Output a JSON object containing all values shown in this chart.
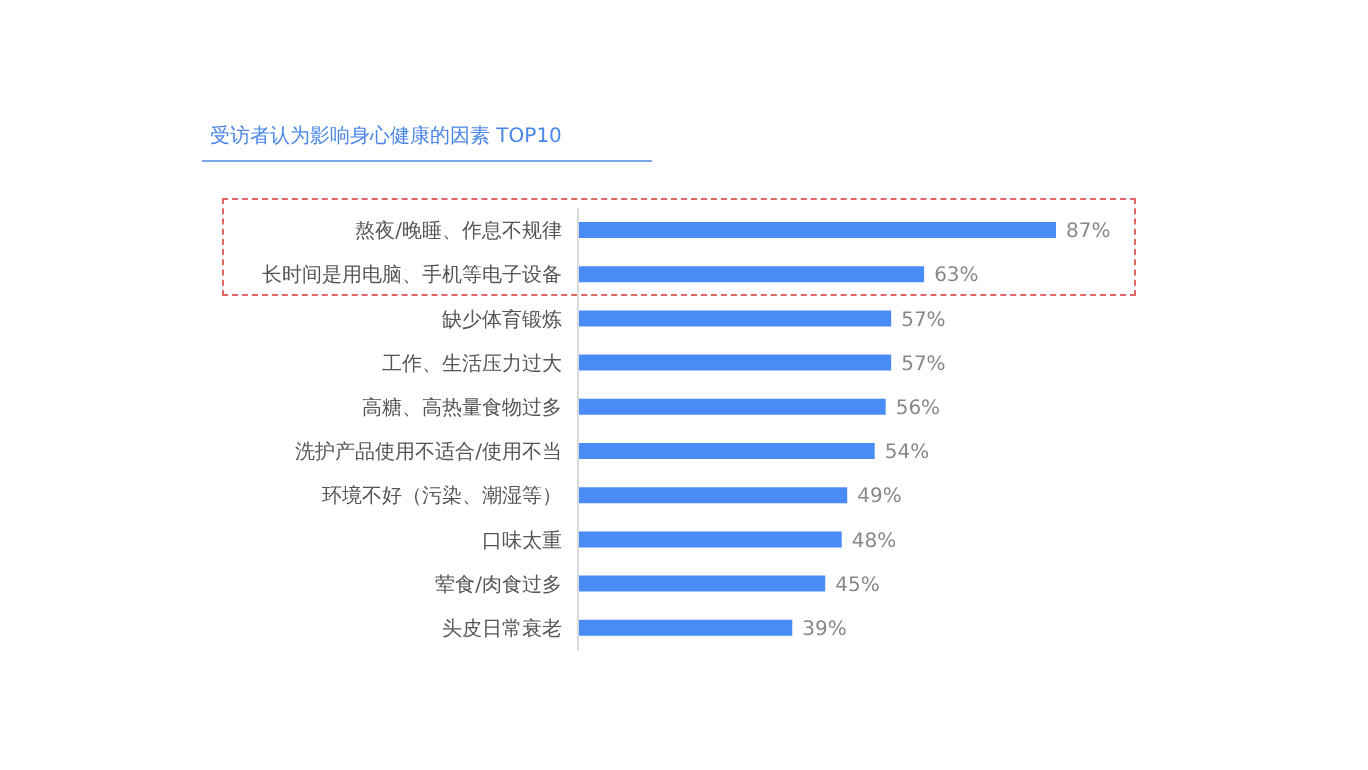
{
  "chart_data": {
    "type": "bar",
    "orientation": "horizontal",
    "title": "受访者认为影响身心健康的因素 TOP10",
    "categories": [
      "熬夜/晚睡、作息不规律",
      "长时间是用电脑、手机等电子设备",
      "缺少体育锻炼",
      "工作、生活压力过大",
      "高糖、高热量食物过多",
      "洗护产品使用不适合/使用不当",
      "环境不好（污染、潮湿等）",
      "口味太重",
      "荤食/肉食过多",
      "头皮日常衰老"
    ],
    "values": [
      87,
      63,
      57,
      57,
      56,
      54,
      49,
      48,
      45,
      39
    ],
    "value_labels": [
      "87%",
      "63%",
      "57%",
      "57%",
      "56%",
      "54%",
      "49%",
      "48%",
      "45%",
      "39%"
    ],
    "color": "#4a8cf5"
  }
}
